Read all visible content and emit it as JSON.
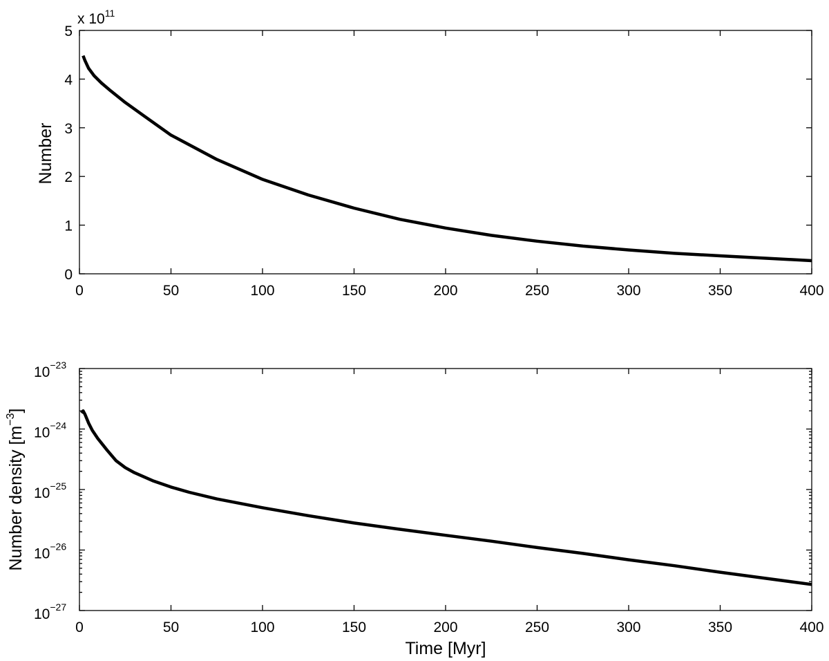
{
  "chart_data": [
    {
      "type": "line",
      "xlabel": "",
      "ylabel": "Number",
      "xlim": [
        0,
        400
      ],
      "ylim": [
        0,
        5
      ],
      "y_multiplier_label": {
        "base": "x 10",
        "exponent": "11"
      },
      "y_scale": "linear",
      "grid": false,
      "xticks": [
        "0",
        "50",
        "100",
        "150",
        "200",
        "250",
        "300",
        "350",
        "400"
      ],
      "yticks": [
        "0",
        "1",
        "2",
        "3",
        "4",
        "5"
      ],
      "series": [
        {
          "color": "#000000",
          "x": [
            2,
            3,
            5,
            8,
            12,
            17,
            25,
            35,
            50,
            75,
            100,
            125,
            150,
            175,
            200,
            225,
            250,
            275,
            300,
            325,
            350,
            375,
            400
          ],
          "y": [
            4.48,
            4.38,
            4.22,
            4.07,
            3.92,
            3.76,
            3.52,
            3.25,
            2.85,
            2.35,
            1.94,
            1.62,
            1.35,
            1.12,
            0.94,
            0.79,
            0.67,
            0.57,
            0.49,
            0.42,
            0.37,
            0.32,
            0.27
          ]
        }
      ]
    },
    {
      "type": "line",
      "xlabel": "Time [Myr]",
      "ylabel": "Number density [m",
      "ylabel_exponent": "−3",
      "ylabel_close": "]",
      "xlim": [
        0,
        400
      ],
      "ylim": [
        1e-27,
        1e-23
      ],
      "y_scale": "log",
      "grid": false,
      "xticks": [
        "0",
        "50",
        "100",
        "150",
        "200",
        "250",
        "300",
        "350",
        "400"
      ],
      "yticks": [
        {
          "base": "10",
          "exponent": "−23",
          "value": -23
        },
        {
          "base": "10",
          "exponent": "−24",
          "value": -24
        },
        {
          "base": "10",
          "exponent": "−25",
          "value": -25
        },
        {
          "base": "10",
          "exponent": "−26",
          "value": -26
        },
        {
          "base": "10",
          "exponent": "−27",
          "value": -27
        }
      ],
      "series": [
        {
          "color": "#000000",
          "x": [
            1,
            2,
            3,
            5,
            7,
            10,
            15,
            20,
            25,
            30,
            40,
            50,
            60,
            75,
            100,
            125,
            150,
            175,
            200,
            225,
            250,
            275,
            300,
            325,
            350,
            375,
            400
          ],
          "y": [
            1.85e-24,
            2e-24,
            1.75e-24,
            1.25e-24,
            9.5e-25,
            7e-25,
            4.5e-25,
            3e-25,
            2.3e-25,
            1.9e-25,
            1.4e-25,
            1.1e-25,
            9e-26,
            7e-26,
            5e-26,
            3.7e-26,
            2.8e-26,
            2.2e-26,
            1.75e-26,
            1.4e-26,
            1.1e-26,
            8.8e-27,
            6.9e-27,
            5.5e-27,
            4.3e-27,
            3.4e-27,
            2.7e-27
          ]
        }
      ]
    }
  ]
}
